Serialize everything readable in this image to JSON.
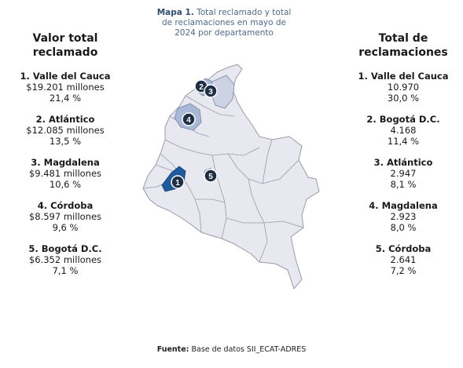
{
  "left_column": {
    "title": "Valor total reclamado",
    "items": [
      {
        "name": "1. Valle del Cauca",
        "value": "$19.201 millones",
        "pct": "21,4 %"
      },
      {
        "name": "2. Atlántico",
        "value": "$12.085 millones",
        "pct": "13,5 %"
      },
      {
        "name": "3. Magdalena",
        "value": "$9.481 millones",
        "pct": "10,6 %"
      },
      {
        "name": "4. Córdoba",
        "value": "$8.597 millones",
        "pct": "9,6 %"
      },
      {
        "name": "5. Bogotá D.C.",
        "value": "$6.352 millones",
        "pct": "7,1 %"
      }
    ]
  },
  "right_column": {
    "title": "Total de reclamaciones",
    "items": [
      {
        "name": "1. Valle del Cauca",
        "value": "10.970",
        "pct": "30,0 %"
      },
      {
        "name": "2. Bogotá D.C.",
        "value": "4.168",
        "pct": "11,4 %"
      },
      {
        "name": "3. Atlántico",
        "value": "2.947",
        "pct": "8,1 %"
      },
      {
        "name": "4. Magdalena",
        "value": "2.923",
        "pct": "8,0 %"
      },
      {
        "name": "5. Córdoba",
        "value": "2.641",
        "pct": "7,2 %"
      }
    ]
  },
  "map": {
    "title_bold": "Mapa 1.",
    "title_text": "Total reclamado y total de reclamaciones en mayo de 2024 por departamento",
    "markers": [
      "1",
      "2",
      "3",
      "4",
      "5"
    ],
    "colors": {
      "base": "#e8e8f0",
      "border": "#9a9aaa",
      "light": "#cdd3e4",
      "mid": "#a9b8d6",
      "dark": "#1f5a9a",
      "marker": "#1f2f45"
    }
  },
  "source": {
    "label": "Fuente:",
    "text": "Base de datos SII_ECAT-ADRES"
  }
}
